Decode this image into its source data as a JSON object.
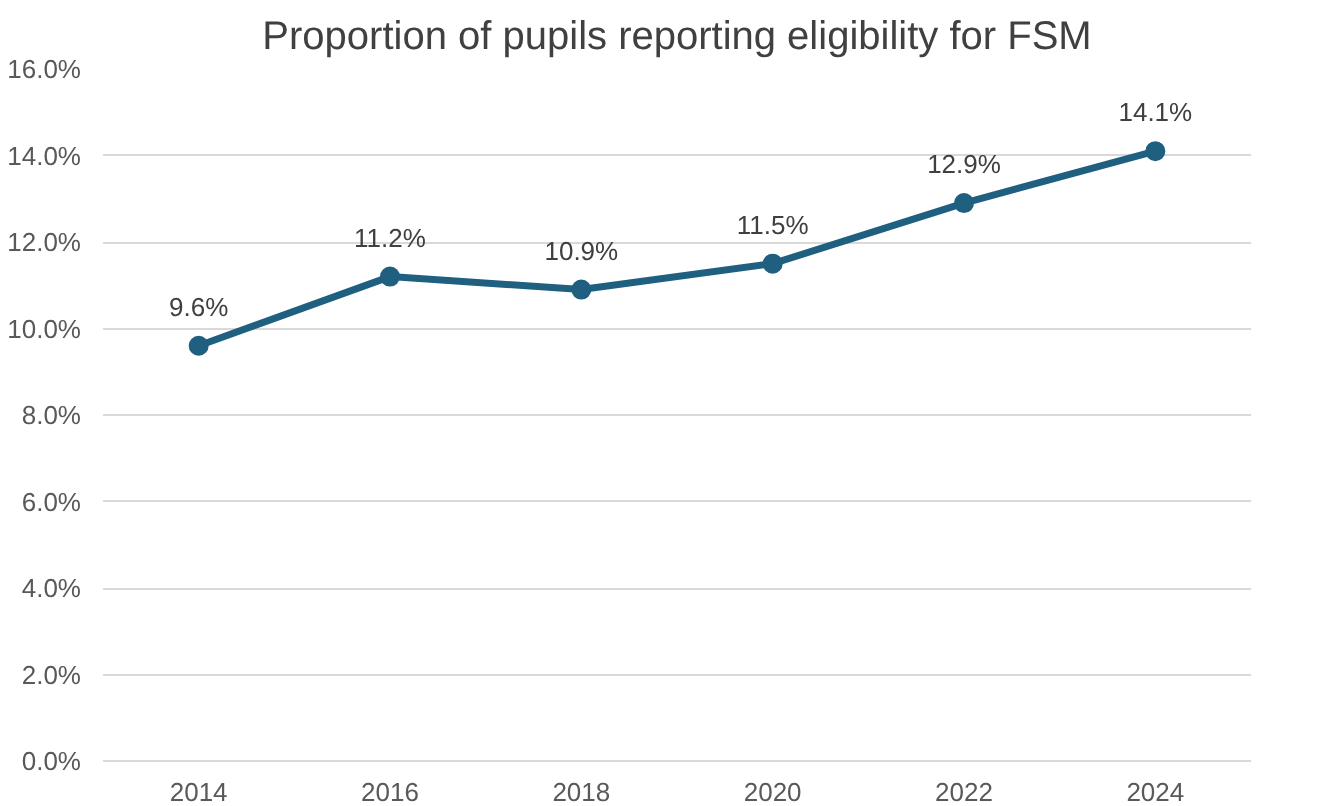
{
  "chart_data": {
    "type": "line",
    "title": "Proportion of pupils reporting eligibility for FSM",
    "categories": [
      "2014",
      "2016",
      "2018",
      "2020",
      "2022",
      "2024"
    ],
    "series": [
      {
        "color": "#1f5f80",
        "values": [
          9.6,
          11.2,
          10.9,
          11.5,
          12.9,
          14.1
        ],
        "value_labels": [
          "9.6%",
          "11.2%",
          "10.9%",
          "11.5%",
          "12.9%",
          "14.1%"
        ]
      }
    ],
    "ylim": [
      0,
      16
    ],
    "yticks": [
      {
        "value": 0,
        "label": "0.0%"
      },
      {
        "value": 2,
        "label": "2.0%"
      },
      {
        "value": 4,
        "label": "4.0%"
      },
      {
        "value": 6,
        "label": "6.0%"
      },
      {
        "value": 8,
        "label": "8.0%"
      },
      {
        "value": 10,
        "label": "10.0%"
      },
      {
        "value": 12,
        "label": "12.0%"
      },
      {
        "value": 14,
        "label": "14.0%"
      },
      {
        "value": 16,
        "label": "16.0%"
      }
    ],
    "grid": "y",
    "marker": "circle",
    "line_style": "solid"
  }
}
